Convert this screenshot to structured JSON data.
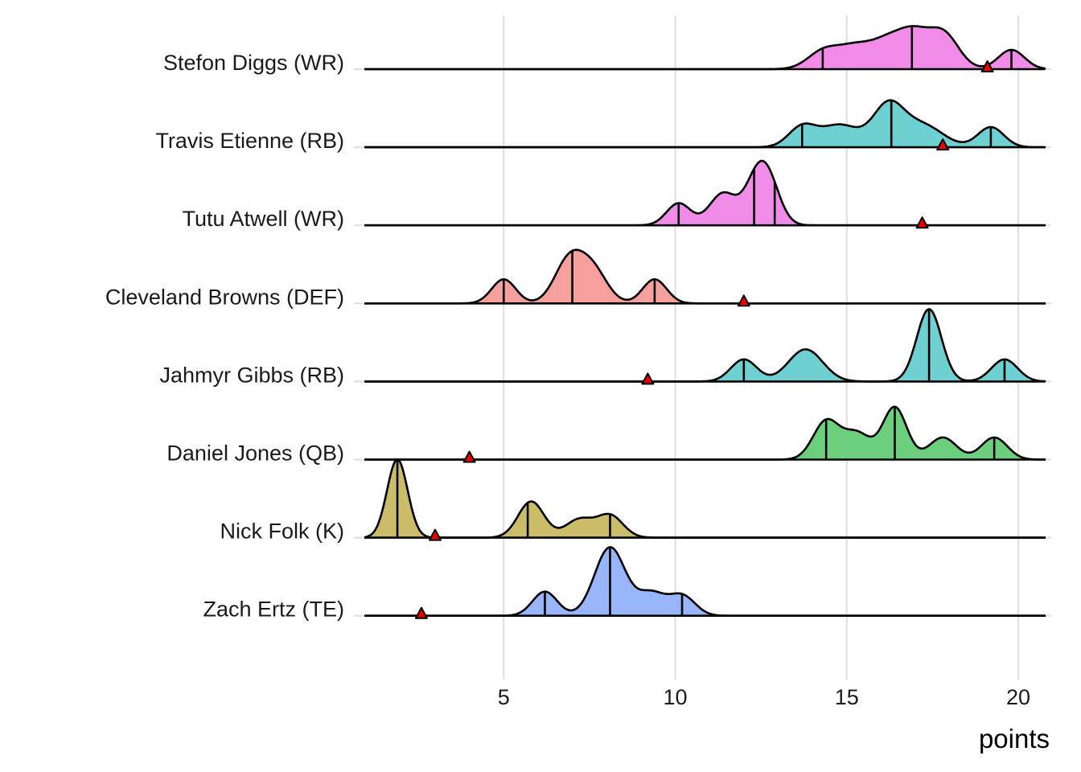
{
  "chart_data": {
    "type": "ridgeline",
    "title": "",
    "xlabel": "points",
    "ylabel": "",
    "xlim": [
      0.95,
      20.8
    ],
    "x_ticks": [
      5,
      10,
      15,
      20
    ],
    "x_tick_labels": [
      "5",
      "10",
      "15",
      "20"
    ],
    "grid": "vertical major gridlines + horizontal row gridlines",
    "legend": "none",
    "marker_label": "projection (red triangle)",
    "series": [
      {
        "name": "Stefon Diggs (WR)",
        "color": "#F08CE8",
        "quantiles": [
          14.3,
          16.9,
          19.8
        ],
        "marker": 19.1,
        "density_components": [
          [
            14.3,
            0.45,
            0.42
          ],
          [
            15.2,
            0.5,
            0.5
          ],
          [
            16.3,
            0.55,
            0.75
          ],
          [
            17.0,
            0.4,
            0.55
          ],
          [
            17.8,
            0.45,
            0.9
          ],
          [
            19.8,
            0.38,
            0.48
          ]
        ]
      },
      {
        "name": "Travis Etienne (RB)",
        "color": "#6FD0D2",
        "quantiles": [
          13.7,
          16.3,
          19.2
        ],
        "marker": 17.8,
        "density_components": [
          [
            13.7,
            0.4,
            0.5
          ],
          [
            14.8,
            0.55,
            0.55
          ],
          [
            16.2,
            0.45,
            1.0
          ],
          [
            17.2,
            0.6,
            0.55
          ],
          [
            19.2,
            0.38,
            0.5
          ]
        ]
      },
      {
        "name": "Tutu Atwell (WR)",
        "color": "#F08CE8",
        "quantiles": [
          10.1,
          12.3,
          12.9
        ],
        "marker": 17.2,
        "density_components": [
          [
            10.1,
            0.35,
            0.55
          ],
          [
            11.4,
            0.4,
            0.8
          ],
          [
            12.6,
            0.38,
            1.45
          ],
          [
            12.2,
            0.3,
            0.3
          ]
        ]
      },
      {
        "name": "Cleveland Browns (DEF)",
        "color": "#F5A09C",
        "quantiles": [
          5.0,
          7.0,
          9.4
        ],
        "marker": 12.0,
        "density_components": [
          [
            5.0,
            0.35,
            0.6
          ],
          [
            6.9,
            0.42,
            1.05
          ],
          [
            7.6,
            0.42,
            0.8
          ],
          [
            9.4,
            0.35,
            0.6
          ]
        ]
      },
      {
        "name": "Jahmyr Gibbs (RB)",
        "color": "#6FD0D2",
        "quantiles": [
          12.0,
          17.4,
          19.6
        ],
        "marker": 9.2,
        "density_components": [
          [
            12.0,
            0.38,
            0.55
          ],
          [
            13.8,
            0.5,
            0.8
          ],
          [
            17.4,
            0.36,
            1.8
          ],
          [
            19.6,
            0.38,
            0.55
          ]
        ]
      },
      {
        "name": "Daniel Jones (QB)",
        "color": "#6CCF7D",
        "quantiles": [
          14.4,
          16.4,
          19.3
        ],
        "marker": 4.0,
        "density_components": [
          [
            14.4,
            0.38,
            0.95
          ],
          [
            15.3,
            0.4,
            0.65
          ],
          [
            16.4,
            0.35,
            1.3
          ],
          [
            17.8,
            0.4,
            0.55
          ],
          [
            19.3,
            0.38,
            0.55
          ]
        ]
      },
      {
        "name": "Nick Folk (K)",
        "color": "#CBBC6A",
        "quantiles": [
          1.9,
          5.7,
          8.1
        ],
        "marker": 3.0,
        "density_components": [
          [
            1.9,
            0.3,
            1.95
          ],
          [
            5.8,
            0.38,
            0.9
          ],
          [
            7.2,
            0.4,
            0.45
          ],
          [
            8.1,
            0.38,
            0.55
          ]
        ]
      },
      {
        "name": "Zach Ertz (TE)",
        "color": "#98B5F8",
        "quantiles": [
          6.2,
          8.1,
          10.2
        ],
        "marker": 2.6,
        "density_components": [
          [
            6.2,
            0.36,
            0.6
          ],
          [
            8.1,
            0.45,
            1.7
          ],
          [
            9.3,
            0.4,
            0.55
          ],
          [
            10.2,
            0.38,
            0.5
          ]
        ]
      }
    ]
  }
}
